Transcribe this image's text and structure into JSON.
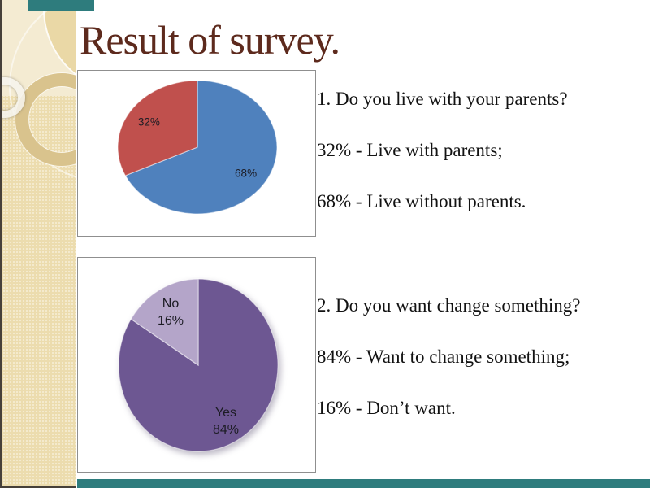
{
  "slide": {
    "title": "Result of survey."
  },
  "theme": {
    "accent_teal": "#2e7c7d",
    "sidebar_beige": "#ecdcae",
    "title_color": "#5d2a1d"
  },
  "chart_data": [
    {
      "type": "pie",
      "title": "Do you live with your parents?",
      "start_angle_deg": 0,
      "direction": "clockwise",
      "legend": "none",
      "label_size": 13.5,
      "shadow": false,
      "slices": [
        {
          "label": "68%",
          "value": 68,
          "color": "#4f81bd"
        },
        {
          "label": "32%",
          "value": 32,
          "color": "#c0504d"
        }
      ]
    },
    {
      "type": "pie",
      "title": "Do you want change something?",
      "start_angle_deg": 0,
      "direction": "clockwise",
      "legend": "none",
      "label_size": 16,
      "shadow": true,
      "slices": [
        {
          "name": "Yes",
          "label": "84%",
          "value": 84,
          "color": "#6d5792"
        },
        {
          "name": "No",
          "label": "16%",
          "value": 16,
          "color": "#b4a5c9"
        }
      ]
    }
  ],
  "qa_blocks": [
    {
      "question": "1. Do you live with your parents?",
      "answer1": "32% - Live with parents;",
      "answer2": "68% - Live without parents."
    },
    {
      "question": "2. Do you want change something?",
      "answer1": "84% - Want to change something;",
      "answer2": "16% - Don’t want."
    }
  ]
}
